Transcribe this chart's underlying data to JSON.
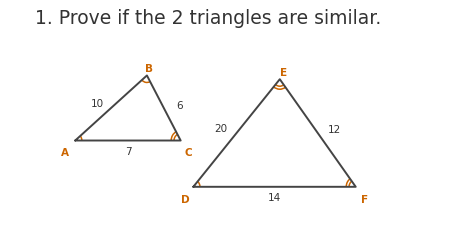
{
  "title": "1. Prove if the 2 triangles are similar.",
  "bg_color": "#ffffff",
  "title_fontsize": 13.5,
  "line_color": "#444444",
  "arc_color": "#cc6600",
  "text_color": "#333333",
  "label_color": "#cc6600",
  "line_width": 1.4,
  "triangle1": {
    "A": [
      0.175,
      0.44
    ],
    "B": [
      0.345,
      0.7
    ],
    "C": [
      0.425,
      0.44
    ],
    "label_A": "A",
    "label_B": "B",
    "label_C": "C",
    "side_AB": "10",
    "side_BC": "6",
    "side_AC": "7",
    "arc_A_n": 1,
    "arc_B_n": 1,
    "arc_C_n": 2
  },
  "triangle2": {
    "D": [
      0.455,
      0.255
    ],
    "E": [
      0.66,
      0.685
    ],
    "F": [
      0.84,
      0.255
    ],
    "label_D": "D",
    "label_E": "E",
    "label_F": "F",
    "side_DE": "20",
    "side_EF": "12",
    "side_DF": "14",
    "arc_D_n": 1,
    "arc_E_n": 2,
    "arc_F_n": 2
  }
}
